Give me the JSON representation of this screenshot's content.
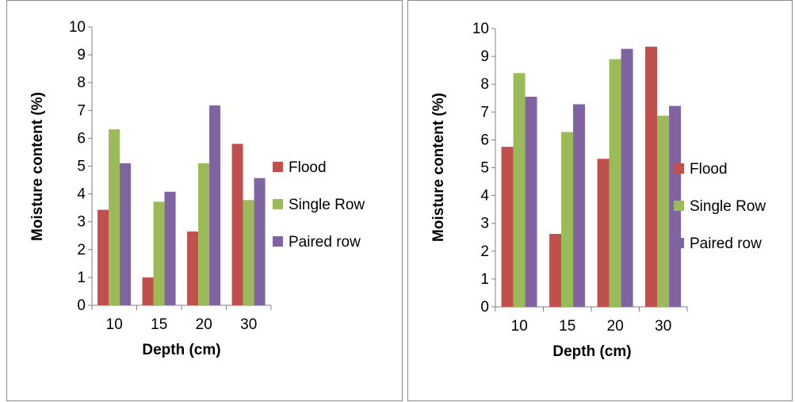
{
  "chart_data": [
    {
      "type": "bar",
      "categories": [
        "10",
        "15",
        "20",
        "30"
      ],
      "series": [
        {
          "name": "Flood",
          "values": [
            3.43,
            1.0,
            2.65,
            5.8
          ],
          "color": "#c0504d"
        },
        {
          "name": "Single Row",
          "values": [
            6.32,
            3.72,
            5.1,
            3.78
          ],
          "color": "#9bbb59"
        },
        {
          "name": "Paired row",
          "values": [
            5.1,
            4.08,
            7.18,
            4.57
          ],
          "color": "#8064a2"
        }
      ],
      "xlabel": "Depth (cm)",
      "ylabel": "Moisture content (%)",
      "ylim": [
        0,
        10
      ],
      "yticks": [
        "0",
        "1",
        "2",
        "3",
        "4",
        "5",
        "6",
        "7",
        "8",
        "9",
        "10"
      ],
      "legend": "right",
      "grid": false
    },
    {
      "type": "bar",
      "categories": [
        "10",
        "15",
        "20",
        "30"
      ],
      "series": [
        {
          "name": "Flood",
          "values": [
            5.75,
            2.62,
            5.32,
            9.35
          ],
          "color": "#c0504d"
        },
        {
          "name": "Single Row",
          "values": [
            8.4,
            6.28,
            8.9,
            6.87
          ],
          "color": "#9bbb59"
        },
        {
          "name": "Paired row",
          "values": [
            7.55,
            7.28,
            9.27,
            7.22
          ],
          "color": "#8064a2"
        }
      ],
      "xlabel": "Depth (cm)",
      "ylabel": "Moisture content (%)",
      "ylim": [
        0,
        10
      ],
      "yticks": [
        "0",
        "1",
        "2",
        "3",
        "4",
        "5",
        "6",
        "7",
        "8",
        "9",
        "10"
      ],
      "legend": "right",
      "grid": false
    }
  ]
}
